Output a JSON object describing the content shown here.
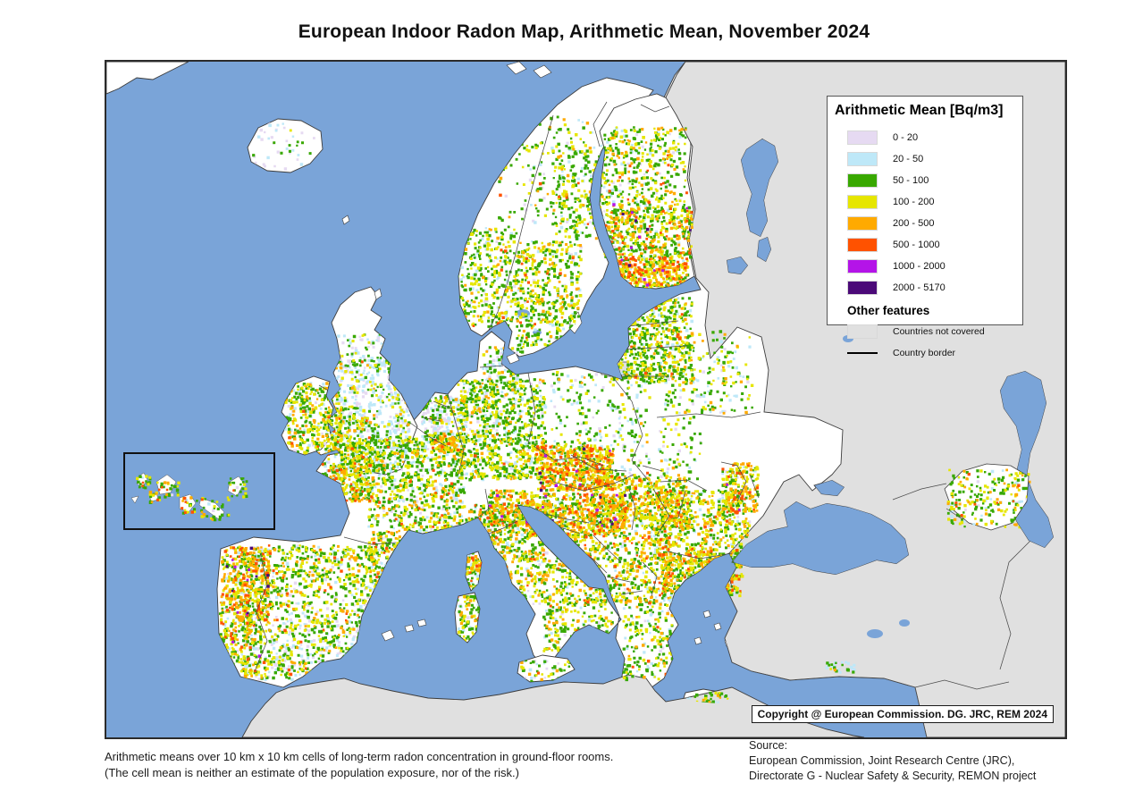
{
  "title": "European Indoor Radon Map, Arithmetic Mean, November 2024",
  "legend": {
    "title": "Arithmetic Mean [Bq/m3]",
    "classes": [
      {
        "label": "0 - 20",
        "color": "#E6DAF2"
      },
      {
        "label": "20 - 50",
        "color": "#BEE8F8"
      },
      {
        "label": "50 - 100",
        "color": "#38A800"
      },
      {
        "label": "100 - 200",
        "color": "#E6E600"
      },
      {
        "label": "200 - 500",
        "color": "#FFAA00"
      },
      {
        "label": "500 - 1000",
        "color": "#FF5200"
      },
      {
        "label": "1000 - 2000",
        "color": "#B414E8"
      },
      {
        "label": "2000 - 5170",
        "color": "#4B0A78"
      }
    ],
    "other_features_title": "Other features",
    "not_covered": {
      "label": "Countries not covered",
      "color": "#E0E0E0"
    },
    "country_border": {
      "label": "Country border",
      "color": "#1a1a1a"
    }
  },
  "map": {
    "copyright": "Copyright @ European Commission. DG. JRC, REM 2024",
    "sea_color": "#7AA4D8",
    "land_color": "#FFFFFF",
    "border_color": "#3c3c3c"
  },
  "footer": {
    "note_line1": "Arithmetic means over 10 km x 10 km cells of long-term radon concentration in ground-floor rooms.",
    "note_line2": "(The cell mean is neither an estimate of the population exposure, nor of the risk.)",
    "source_label": "Source:",
    "source_line1": "European Commission, Joint Research Centre (JRC),",
    "source_line2": "Directorate G - Nuclear Safety & Security, REMON project"
  }
}
